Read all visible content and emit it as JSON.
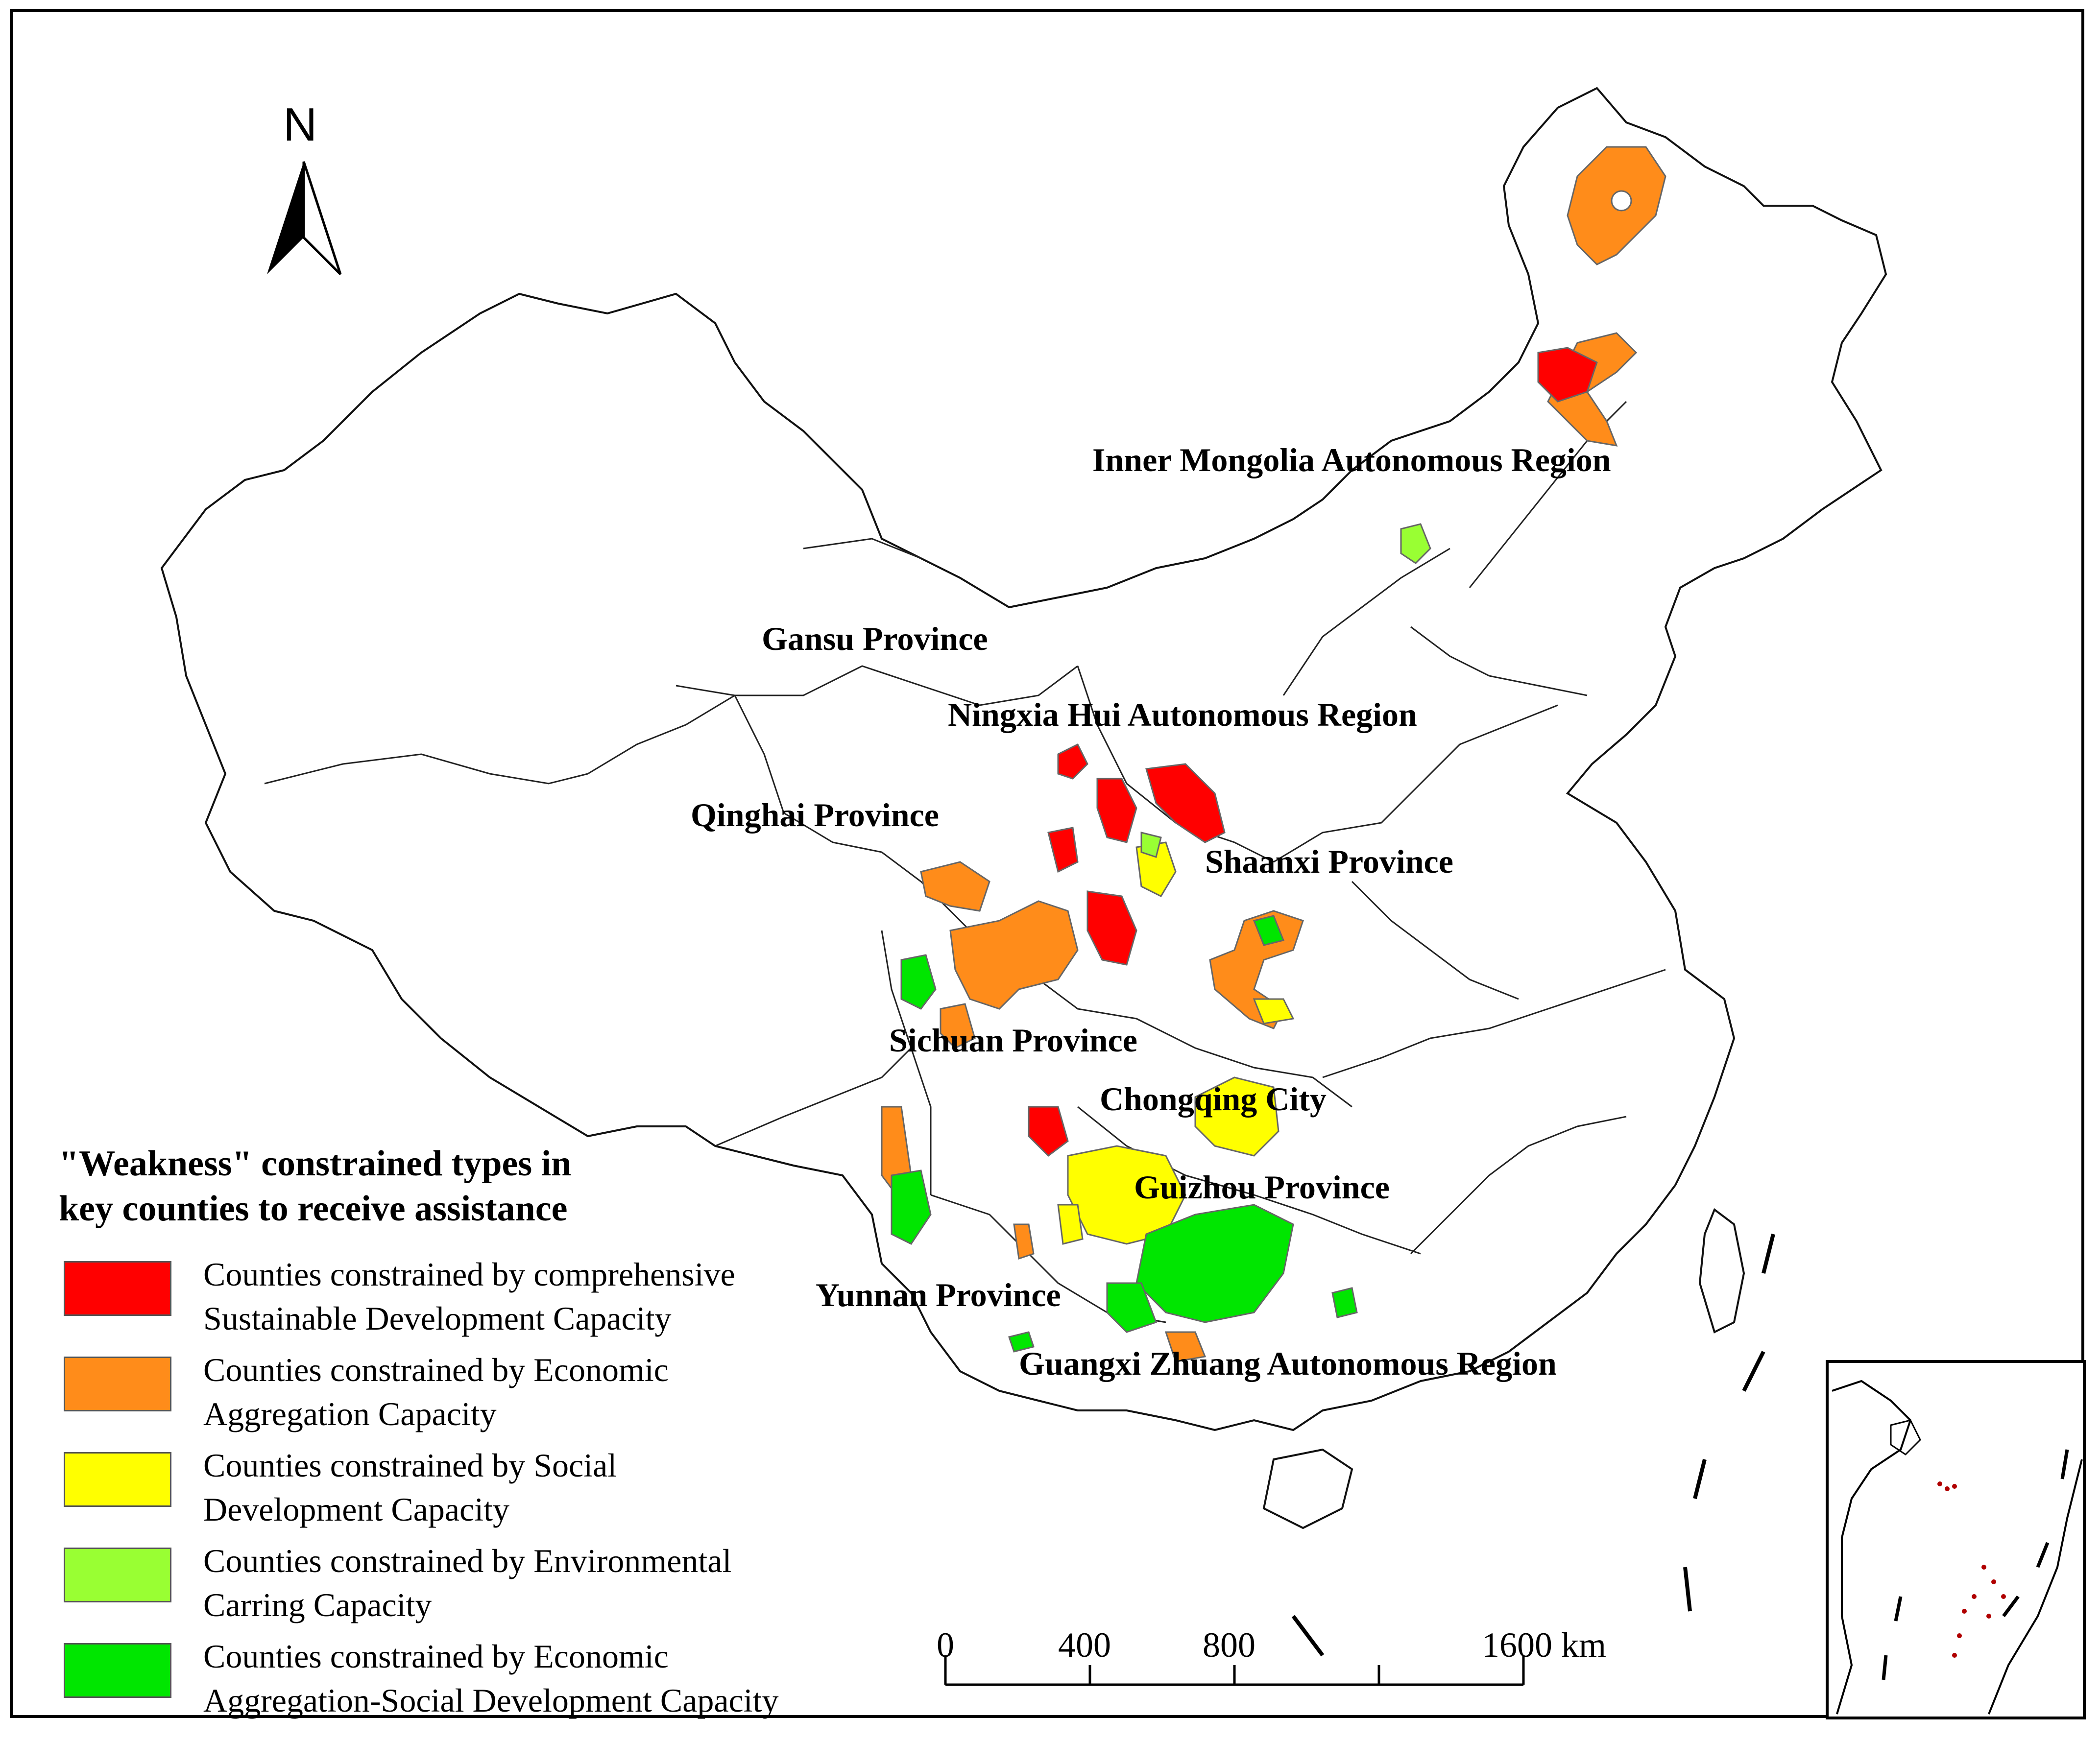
{
  "north_arrow": {
    "label": "N"
  },
  "province_labels": [
    {
      "id": "inner-mongolia",
      "text": "Inner Mongolia Autonomous Region"
    },
    {
      "id": "gansu",
      "text": "Gansu Province"
    },
    {
      "id": "ningxia",
      "text": "Ningxia Hui Autonomous Region"
    },
    {
      "id": "qinghai",
      "text": "Qinghai Province"
    },
    {
      "id": "shaanxi",
      "text": "Shaanxi Province"
    },
    {
      "id": "sichuan",
      "text": "Sichuan Province"
    },
    {
      "id": "chongqing",
      "text": "Chongqing City"
    },
    {
      "id": "guizhou",
      "text": "Guizhou Province"
    },
    {
      "id": "yunnan",
      "text": "Yunnan Province"
    },
    {
      "id": "guangxi",
      "text": "Guangxi Zhuang Autonomous Region"
    }
  ],
  "legend": {
    "title_line1": "\"Weakness\" constrained types in",
    "title_line2": "key counties to receive assistance",
    "items": [
      {
        "line1": "Counties constrained by comprehensive",
        "line2": "Sustainable Development Capacity",
        "color": "#ff0000"
      },
      {
        "line1": "Counties constrained by Economic",
        "line2": "Aggregation Capacity",
        "color": "#ff8c1a"
      },
      {
        "line1": "Counties constrained by Social",
        "line2": "Development Capacity",
        "color": "#ffff00"
      },
      {
        "line1": "Counties constrained by Environmental",
        "line2": "Carring Capacity",
        "color": "#99ff33"
      },
      {
        "line1": "Counties constrained by Economic",
        "line2": "Aggregation-Social Development Capacity",
        "color": "#00e600"
      }
    ]
  },
  "scale_bar": {
    "labels": [
      "0",
      "400",
      "800",
      "1600 km"
    ],
    "unit": "km"
  }
}
